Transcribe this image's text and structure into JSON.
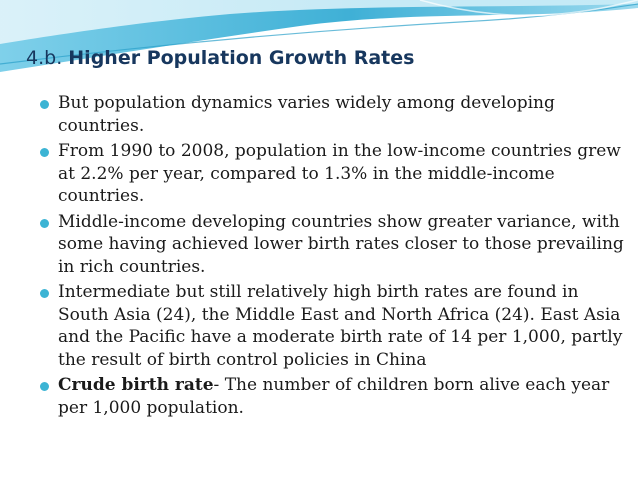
{
  "slide": {
    "title_prefix": "4.b.",
    "title_main": "Higher Population Growth Rates",
    "bullets": [
      "But population dynamics varies widely among developing countries.",
      "From 1990 to 2008, population in the low-income countries grew at 2.2% per year, compared to 1.3% in the middle-income countries.",
      "Middle-income developing countries show greater variance, with some having achieved lower birth rates closer to those prevailing in rich countries.",
      "Intermediate but still relatively high birth rates are found in South Asia (24), the Middle East and North Africa (24). East Asia and the Pacific have a moderate birth rate of 14 per 1,000, partly the result of birth control policies in China"
    ],
    "definition": {
      "term": "Crude birth rate",
      "text": "- The number of children born alive each year per 1,000 population."
    }
  },
  "colors": {
    "title": "#17375e",
    "bullet": "#3cb4d4",
    "wave_dark": "#5bbfdc",
    "wave_light": "#bfe6f3"
  }
}
